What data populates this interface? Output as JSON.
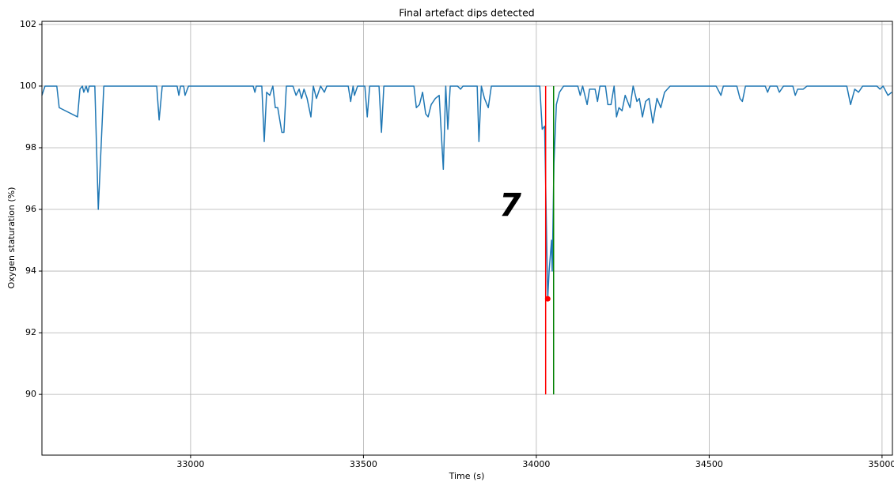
{
  "chart_data": {
    "type": "line",
    "title": "Final artefact dips detected",
    "xlabel": "Time (s)",
    "ylabel": "Oxygen staturation (%)",
    "annotation": "7",
    "color": "#1f77b4",
    "x": [
      32570,
      32579,
      32613,
      32620,
      32673,
      32680,
      32687,
      32691,
      32698,
      32703,
      32707,
      32723,
      32733,
      32749,
      32902,
      32909,
      32918,
      32961,
      32966,
      32971,
      32980,
      32984,
      32994,
      33181,
      33186,
      33190,
      33206,
      33213,
      33220,
      33229,
      33238,
      33245,
      33252,
      33264,
      33270,
      33277,
      33296,
      33305,
      33314,
      33321,
      33328,
      33337,
      33348,
      33355,
      33364,
      33376,
      33387,
      33394,
      33456,
      33463,
      33470,
      33474,
      33483,
      33504,
      33511,
      33518,
      33545,
      33552,
      33559,
      33646,
      33653,
      33662,
      33671,
      33680,
      33687,
      33696,
      33708,
      33719,
      33731,
      33738,
      33744,
      33751,
      33772,
      33781,
      33788,
      33829,
      33834,
      33841,
      33850,
      33861,
      33870,
      34010,
      34017,
      34024,
      34033,
      34037,
      34044,
      34046,
      34051,
      34058,
      34067,
      34079,
      34120,
      34127,
      34134,
      34147,
      34154,
      34170,
      34177,
      34184,
      34200,
      34207,
      34216,
      34225,
      34232,
      34239,
      34248,
      34257,
      34271,
      34280,
      34291,
      34298,
      34307,
      34316,
      34326,
      34337,
      34349,
      34360,
      34371,
      34387,
      34520,
      34534,
      34541,
      34580,
      34589,
      34596,
      34605,
      34662,
      34669,
      34676,
      34696,
      34703,
      34715,
      34742,
      34749,
      34756,
      34772,
      34783,
      34898,
      34909,
      34921,
      34932,
      34944,
      34985,
      34994,
      35003,
      35017,
      35028
    ],
    "values": [
      99.7,
      100,
      100,
      99.3,
      99.0,
      99.9,
      100,
      99.8,
      100,
      99.8,
      100,
      100,
      96.0,
      100,
      100,
      98.9,
      100,
      100,
      99.7,
      100,
      100,
      99.7,
      100,
      100,
      99.8,
      100,
      100,
      98.2,
      99.8,
      99.7,
      100,
      99.3,
      99.3,
      98.5,
      98.5,
      100,
      100,
      99.7,
      99.9,
      99.6,
      99.9,
      99.6,
      99.0,
      100,
      99.6,
      100,
      99.8,
      100,
      100,
      99.5,
      100,
      99.7,
      100,
      100,
      99.0,
      100,
      100,
      98.5,
      100,
      100,
      99.3,
      99.4,
      99.8,
      99.1,
      99.0,
      99.4,
      99.6,
      99.7,
      97.3,
      100,
      98.6,
      100,
      100,
      99.9,
      100,
      100,
      98.2,
      100,
      99.6,
      99.3,
      100,
      100,
      98.6,
      98.7,
      93.1,
      94.0,
      95.0,
      94.0,
      97.5,
      99.4,
      99.8,
      100,
      100,
      99.7,
      100,
      99.4,
      99.9,
      99.9,
      99.5,
      100,
      100,
      99.4,
      99.4,
      100,
      99.0,
      99.3,
      99.2,
      99.7,
      99.3,
      100,
      99.5,
      99.6,
      99.0,
      99.5,
      99.6,
      98.8,
      99.6,
      99.3,
      99.8,
      100,
      100,
      99.7,
      100,
      100,
      99.6,
      99.5,
      100,
      100,
      99.8,
      100,
      100,
      99.8,
      100,
      100,
      99.7,
      99.9,
      99.9,
      100,
      100,
      99.4,
      99.9,
      99.8,
      100,
      100,
      99.9,
      100,
      99.7,
      99.8
    ],
    "vlines": [
      {
        "x": 34027,
        "ymin": 90,
        "ymax": 100,
        "color": "#ff0000"
      },
      {
        "x": 34050,
        "ymin": 90,
        "ymax": 100,
        "color": "#008000"
      }
    ],
    "points": [
      {
        "x": 34033,
        "y": 93.1,
        "color": "#ff0000"
      }
    ],
    "xlim": [
      32570,
      35030
    ],
    "ylim": [
      88.03,
      102.1
    ],
    "xticks": [
      33000,
      33500,
      34000,
      34500,
      35000
    ],
    "yticks": [
      90,
      92,
      94,
      96,
      98,
      100,
      102
    ],
    "grid": true
  }
}
